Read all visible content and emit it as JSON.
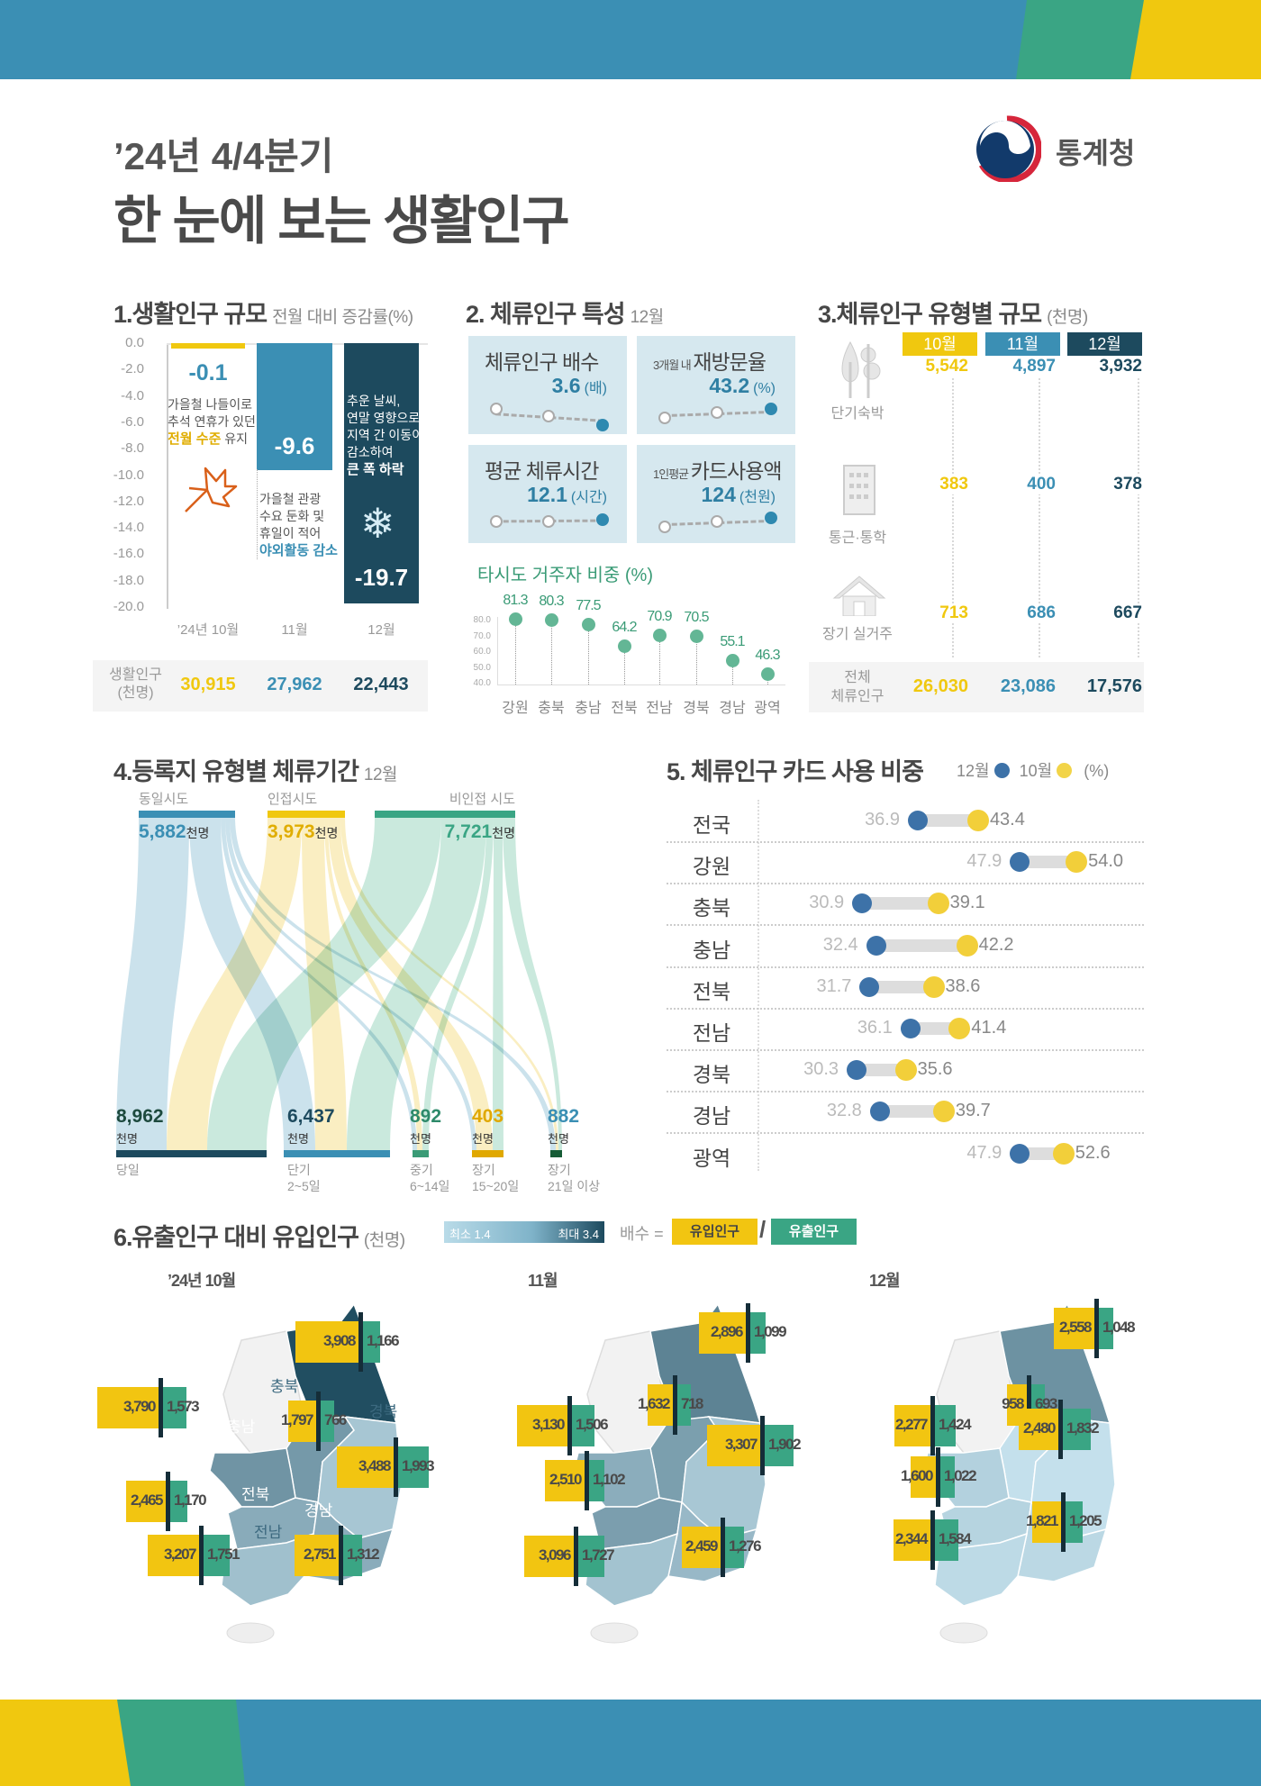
{
  "colors": {
    "blue": "#3b8fb4",
    "green": "#3aa584",
    "yellow": "#f0c80f",
    "dark": "#1d4a5e",
    "map_min": "#c4e0ec",
    "map_max": "#1d4a5e"
  },
  "header": {
    "title_line1": "’24년 4/4분기",
    "title_line2": "한 눈에 보는 생활인구",
    "logo_text": "통계청"
  },
  "section1": {
    "title": "1.생활인구 규모",
    "subtitle": "전월 대비 증감률(%)",
    "value_labels": [
      "-0.1",
      "-9.6",
      "-19.7"
    ],
    "notes": {
      "oct": {
        "lines": [
          "가을철 나들이로",
          "추석 연휴가 있던"
        ],
        "highlight": "전월 수준",
        "tail": " 유지"
      },
      "nov": {
        "lines": [
          "가을철 관광",
          "수요 둔화 및",
          "휴일이 적어"
        ],
        "highlight": "야외활동 감소"
      },
      "dec": {
        "lines": [
          "추운 날씨,",
          "연말 영향으로",
          "지역 간 이동이",
          "감소하여"
        ],
        "highlight": "큰 폭 하락"
      }
    },
    "table": {
      "label": [
        "생활인구",
        "(천명)"
      ],
      "values": [
        "30,915",
        "27,962",
        "22,443"
      ]
    }
  },
  "section2": {
    "title": "2. 체류인구 특성",
    "subtitle": "12월",
    "cards": [
      {
        "pre": "",
        "label": "체류인구 배수",
        "value": "3.6",
        "unit": "(배)",
        "trend": "down"
      },
      {
        "pre": "3개월 내",
        "label": "재방문율",
        "value": "43.2",
        "unit": "(%)",
        "trend": "up"
      },
      {
        "pre": "",
        "label": "평균 체류시간",
        "value": "12.1",
        "unit": "(시간)",
        "trend": "flat-up"
      },
      {
        "pre": "1인평균",
        "label": "카드사용액",
        "value": "124",
        "unit": "(천원)",
        "trend": "up"
      }
    ],
    "chart_title": "타시도 거주자 비중 (%)"
  },
  "section3": {
    "title": "3.체류인구 유형별 규모",
    "subtitle": "(천명)",
    "months": [
      "10월",
      "11월",
      "12월"
    ],
    "rows": [
      {
        "label": "단기숙박",
        "icon": "tree-icon",
        "values": [
          "5,542",
          "4,897",
          "3,932"
        ]
      },
      {
        "label": "통근·통학",
        "icon": "building-icon",
        "values": [
          "383",
          "400",
          "378"
        ]
      },
      {
        "label": "장기 실거주",
        "icon": "house-icon",
        "values": [
          "713",
          "686",
          "667"
        ]
      }
    ],
    "total": {
      "label": [
        "전체",
        "체류인구"
      ],
      "values": [
        "26,030",
        "23,086",
        "17,576"
      ]
    }
  },
  "section4": {
    "title": "4.등록지 유형별 체류기간",
    "subtitle": "12월",
    "sources": [
      {
        "label": "동일시도",
        "value": "5,882",
        "unit": "천명"
      },
      {
        "label": "인접시도",
        "value": "3,973",
        "unit": "천명"
      },
      {
        "label": "비인접 시도",
        "value": "7,721",
        "unit": "천명"
      }
    ],
    "targets": [
      {
        "value": "8,962",
        "unit": "천명",
        "label": [
          "당일"
        ]
      },
      {
        "value": "6,437",
        "unit": "천명",
        "label": [
          "단기",
          "2~5일"
        ]
      },
      {
        "value": "892",
        "unit": "천명",
        "label": [
          "중기",
          "6~14일"
        ]
      },
      {
        "value": "403",
        "unit": "천명",
        "label": [
          "장기",
          "15~20일"
        ]
      },
      {
        "value": "882",
        "unit": "천명",
        "label": [
          "장기",
          "21일 이상"
        ]
      }
    ]
  },
  "section5": {
    "title": "5. 체류인구 카드 사용 비중",
    "legend": {
      "dec": "12월",
      "oct": "10월",
      "unit": "(%)"
    }
  },
  "section6": {
    "title": "6.유출인구 대비 유입인구",
    "subtitle": "(천명)",
    "legend": {
      "min": "최소 1.4",
      "max": "최대 3.4",
      "formula": "배수 =",
      "in_label": "유입인구",
      "slash": "/",
      "out_label": "유출인구"
    },
    "region_names": {
      "gangwon": "강원",
      "chungbuk": "충북",
      "chungnam": "충남",
      "gyeongbuk": "경북",
      "jeonbuk": "전북",
      "jeonnam": "전남",
      "gyeongnam": "경남"
    },
    "maps": [
      {
        "title": "’24년 10월",
        "regions": {
          "gangwon": {
            "in": "3,908",
            "out": "1,166"
          },
          "chungnam": {
            "in": "3,790",
            "out": "1,573"
          },
          "chungbuk": {
            "in": "1,797",
            "out": "766"
          },
          "gyeongbuk": {
            "in": "3,488",
            "out": "1,993"
          },
          "jeonbuk": {
            "in": "2,465",
            "out": "1,170"
          },
          "jeonnam": {
            "in": "3,207",
            "out": "1,751"
          },
          "gyeongnam": {
            "in": "2,751",
            "out": "1,312"
          }
        }
      },
      {
        "title": "11월",
        "regions": {
          "gangwon": {
            "in": "2,896",
            "out": "1,099"
          },
          "chungnam": {
            "in": "3,130",
            "out": "1,506"
          },
          "chungbuk": {
            "in": "1,632",
            "out": "718"
          },
          "gyeongbuk": {
            "in": "3,307",
            "out": "1,902"
          },
          "jeonbuk": {
            "in": "2,510",
            "out": "1,102"
          },
          "jeonnam": {
            "in": "3,096",
            "out": "1,727"
          },
          "gyeongnam": {
            "in": "2,459",
            "out": "1,276"
          }
        }
      },
      {
        "title": "12월",
        "regions": {
          "gangwon": {
            "in": "2,558",
            "out": "1,048"
          },
          "chungnam": {
            "in": "2,277",
            "out": "1,424"
          },
          "chungbuk": {
            "in": "958",
            "out": "693"
          },
          "gyeongbuk": {
            "in": "2,480",
            "out": "1,832"
          },
          "jeonbuk": {
            "in": "1,600",
            "out": "1,022"
          },
          "jeonnam": {
            "in": "2,344",
            "out": "1,584"
          },
          "gyeongnam": {
            "in": "1,821",
            "out": "1,205"
          }
        }
      }
    ]
  },
  "chart_data": [
    {
      "type": "bar",
      "categories": [
        "’24년 10월",
        "11월",
        "12월"
      ],
      "values": [
        -0.1,
        -9.6,
        -19.7
      ],
      "ylim": [
        -20,
        0
      ],
      "yticks": [
        "0.0",
        "-2.0",
        "-4.0",
        "-6.0",
        "-8.0",
        "-10.0",
        "-12.0",
        "-14.0",
        "-16.0",
        "-18.0",
        "-20.0"
      ],
      "ylabel": "전월 대비 증감률(%)"
    },
    {
      "type": "scatter",
      "title": "타시도 거주자 비중 (%)",
      "categories": [
        "강원",
        "충북",
        "충남",
        "전북",
        "전남",
        "경북",
        "경남",
        "광역"
      ],
      "values": [
        81.3,
        80.3,
        77.5,
        64.2,
        70.9,
        70.5,
        55.1,
        46.3
      ],
      "ylim": [
        40,
        80
      ],
      "yticks": [
        "40.0",
        "50.0",
        "60.0",
        "70.0",
        "80.0"
      ]
    },
    {
      "type": "dumbbell",
      "categories": [
        "전국",
        "강원",
        "충북",
        "충남",
        "전북",
        "전남",
        "경북",
        "경남",
        "광역"
      ],
      "series": [
        {
          "name": "12월",
          "values": [
            36.9,
            47.9,
            30.9,
            32.4,
            31.7,
            36.1,
            30.3,
            32.8,
            47.9
          ]
        },
        {
          "name": "10월",
          "values": [
            43.4,
            54.0,
            39.1,
            42.2,
            38.6,
            41.4,
            35.6,
            39.7,
            52.6
          ]
        }
      ]
    }
  ]
}
